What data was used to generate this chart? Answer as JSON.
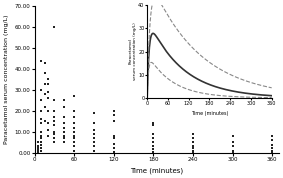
{
  "title": "",
  "xlabel": "Time (minutes)",
  "ylabel": "Paracetamol serum concentration (mg/L)",
  "xlim": [
    0,
    370
  ],
  "ylim": [
    0,
    70
  ],
  "yticks": [
    0,
    10.0,
    20.0,
    30.0,
    40.0,
    50.0,
    60.0,
    70.0
  ],
  "xticks": [
    0,
    60,
    120,
    180,
    240,
    300,
    360
  ],
  "scatter_data": {
    "x": [
      5,
      5,
      5,
      5,
      5,
      5,
      10,
      10,
      10,
      10,
      10,
      10,
      10,
      10,
      10,
      10,
      10,
      10,
      10,
      15,
      15,
      15,
      15,
      15,
      15,
      20,
      20,
      20,
      20,
      20,
      20,
      20,
      20,
      30,
      30,
      30,
      30,
      30,
      30,
      30,
      30,
      30,
      30,
      45,
      45,
      45,
      45,
      45,
      45,
      45,
      45,
      45,
      60,
      60,
      60,
      60,
      60,
      60,
      60,
      60,
      60,
      60,
      60,
      90,
      90,
      90,
      90,
      90,
      90,
      90,
      90,
      120,
      120,
      120,
      120,
      120,
      120,
      120,
      120,
      180,
      180,
      180,
      180,
      180,
      180,
      180,
      180,
      180,
      240,
      240,
      240,
      240,
      240,
      240,
      240,
      300,
      300,
      300,
      300,
      300,
      360,
      360,
      360,
      360,
      360,
      360
    ],
    "y": [
      0.5,
      1.0,
      1.5,
      2.0,
      3.0,
      5.0,
      1.0,
      2.0,
      3.5,
      5.0,
      7.0,
      8.0,
      10.0,
      14.0,
      16.0,
      20.0,
      25.0,
      30.0,
      44.0,
      15.0,
      22.0,
      28.0,
      33.0,
      38.0,
      43.0,
      8.0,
      11.0,
      14.0,
      20.0,
      26.0,
      29.0,
      33.0,
      35.0,
      5.0,
      7.0,
      9.0,
      10.0,
      13.0,
      15.0,
      17.0,
      20.0,
      25.0,
      60.0,
      5.0,
      7.0,
      8.0,
      10.0,
      12.0,
      14.0,
      17.0,
      22.0,
      25.0,
      1.0,
      3.0,
      5.0,
      7.0,
      8.0,
      10.0,
      12.0,
      14.0,
      17.0,
      20.0,
      27.0,
      1.0,
      3.0,
      5.0,
      7.0,
      9.0,
      11.0,
      14.0,
      19.0,
      0.5,
      2.0,
      4.0,
      7.0,
      8.0,
      15.0,
      18.0,
      20.0,
      0.5,
      1.5,
      3.0,
      5.0,
      7.0,
      9.0,
      13.0,
      14.0,
      14.0,
      0.5,
      1.0,
      2.0,
      3.0,
      5.0,
      7.0,
      9.0,
      0.5,
      1.0,
      3.0,
      5.0,
      8.0,
      0.5,
      1.0,
      2.0,
      3.5,
      6.0,
      8.0
    ]
  },
  "inset": {
    "xlim": [
      0,
      360
    ],
    "ylim": [
      0,
      40
    ],
    "xticks": [
      0,
      60,
      120,
      180,
      240,
      300,
      360
    ],
    "yticks": [
      0,
      10,
      20,
      30,
      40
    ],
    "xlabel": "Time (minutes)",
    "ylabel": "Paracetamol\nserum concentration (mg/L)",
    "mean_peak": 30,
    "mean_tpeak": 30,
    "ke": 0.012,
    "ka": 0.15,
    "upper_factor": 1.5,
    "lower_factor": 0.6
  },
  "background_color": "#ffffff",
  "dot_color": "#222222",
  "dot_size": 3,
  "inset_line_color": "#333333",
  "inset_dash_color": "#888888"
}
